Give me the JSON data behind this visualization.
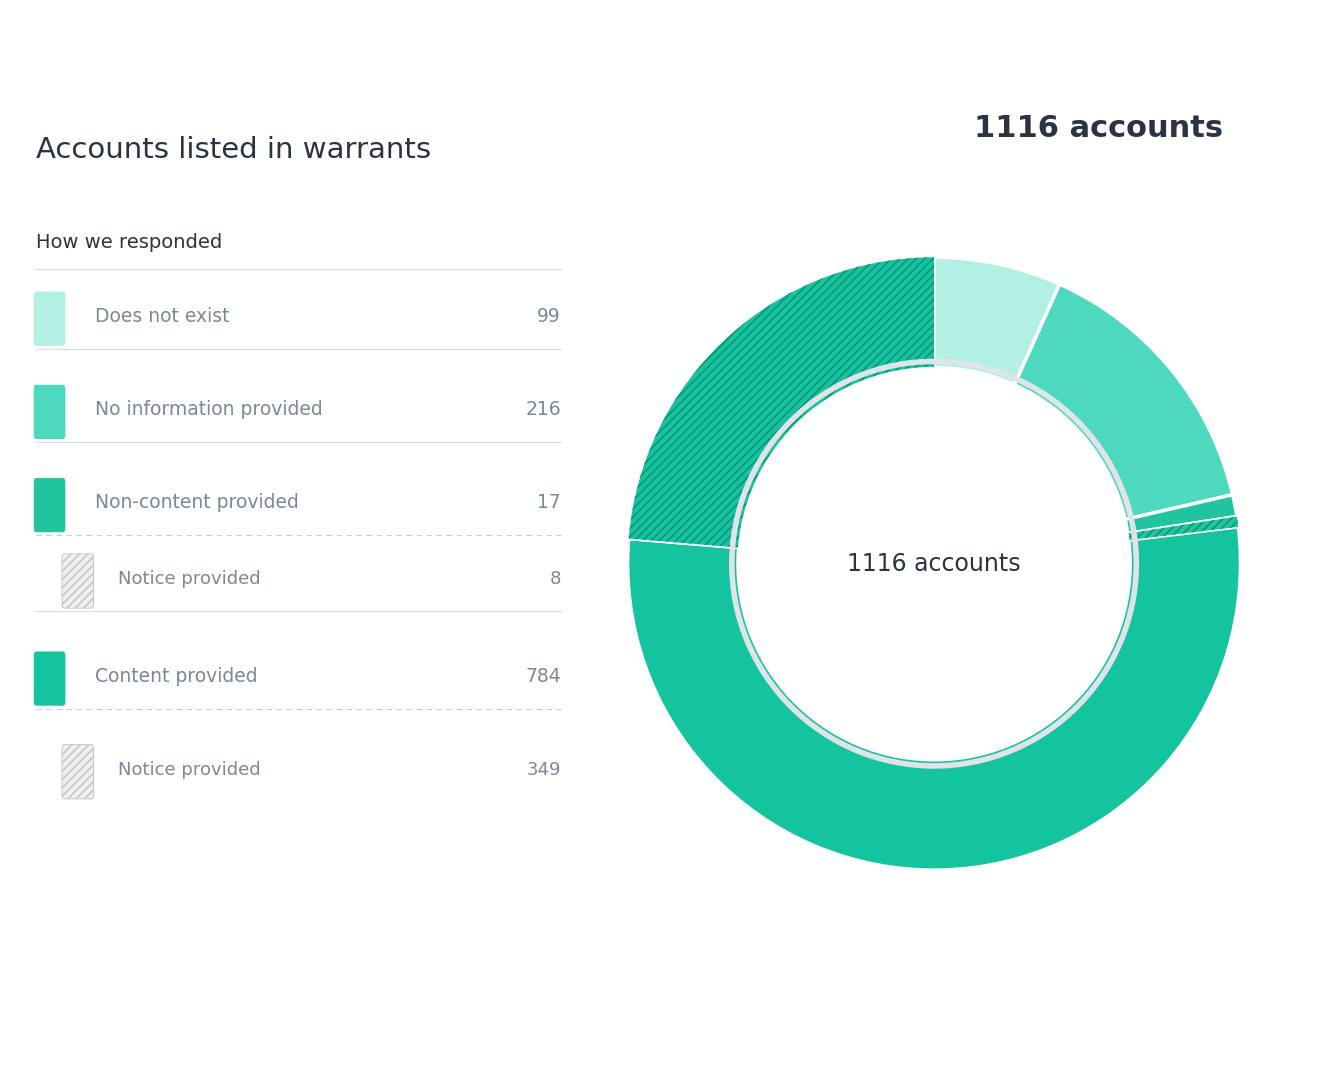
{
  "title_left": "Accounts listed in warrants",
  "title_right": "1116 accounts",
  "subtitle": "How we responded",
  "center_text": "1116 accounts",
  "total": 1116,
  "segments": [
    {
      "label": "Does not exist",
      "value": 99,
      "color": "#b2f0e4",
      "hatch": null,
      "indent": false
    },
    {
      "label": "No information provided",
      "value": 216,
      "color": "#4dd9be",
      "hatch": null,
      "indent": false
    },
    {
      "label": "Non-content provided",
      "value": 17,
      "color": "#20c5a0",
      "hatch": null,
      "indent": false
    },
    {
      "label": "Notice provided",
      "value": 8,
      "color": "#20c5a0",
      "hatch": "////",
      "indent": true
    },
    {
      "label": "Content provided",
      "value": 784,
      "color": "#13c49e",
      "hatch": null,
      "indent": false
    },
    {
      "label": "Notice provided",
      "value": 349,
      "color": "#13c49e",
      "hatch": "////",
      "indent": true
    }
  ],
  "legend_swatch_colors": [
    "#b2f0e4",
    "#4dd9be",
    "#20c5a0",
    "#f0f0f0",
    "#13c49e",
    "#f0f0f0"
  ],
  "legend_hatch_colors": [
    null,
    null,
    null,
    "#c0c0c0",
    null,
    "#c0c0c0"
  ],
  "background_color": "#ffffff",
  "text_color": "#2a3344",
  "label_color": "#7a8899",
  "value_color": "#7a8899",
  "separator_solid": "#d8dce0",
  "separator_dashed": "#c8ccd0",
  "donut_hatch_color_1": "#1aaa88",
  "donut_hatch_color_2": "#0fb890"
}
